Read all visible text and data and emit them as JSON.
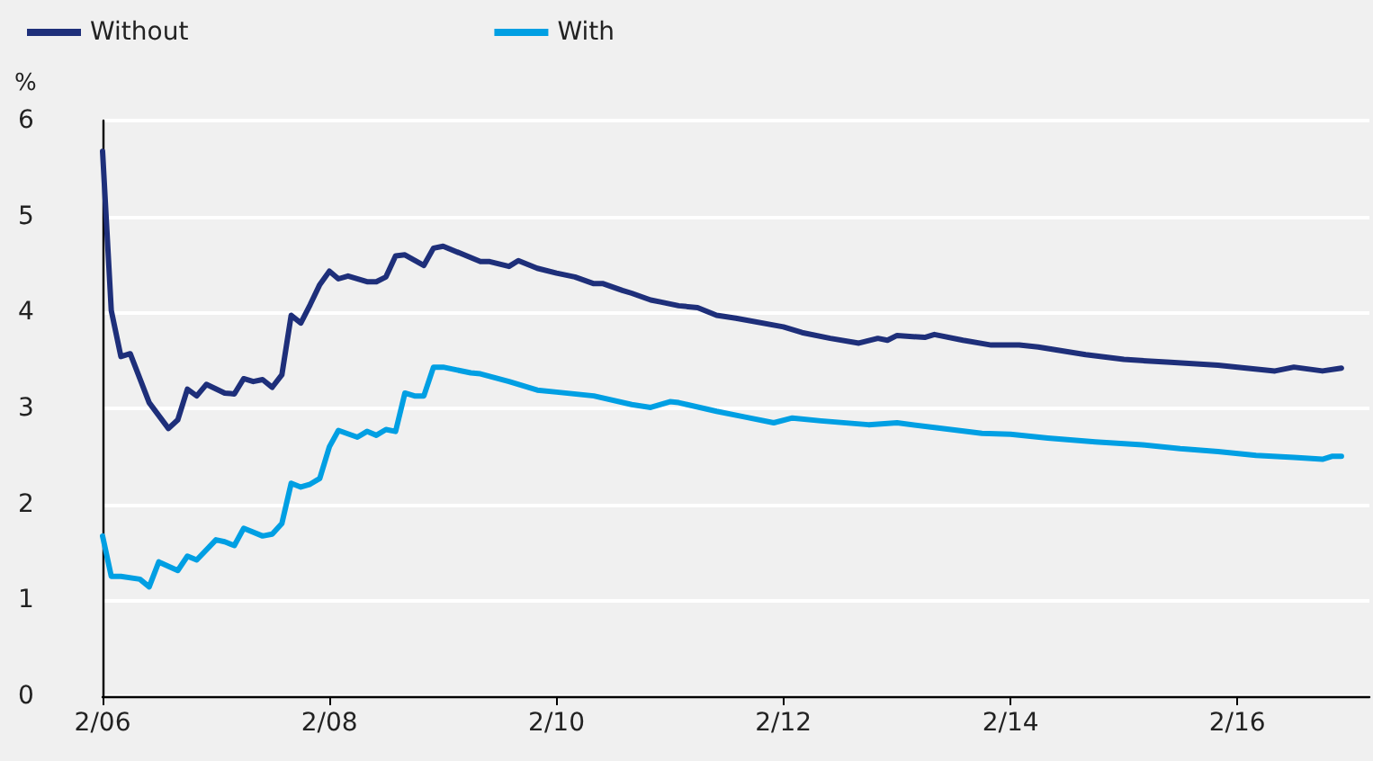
{
  "chart_data": {
    "type": "line",
    "ylabel": "%",
    "legend": "top left",
    "grid": "y",
    "marker": "none",
    "line_style": "solid",
    "xlim": [
      "2006-02",
      "2017-04"
    ],
    "ylim": [
      0,
      6
    ],
    "yticks": [
      0,
      1,
      2,
      3,
      4,
      5,
      6
    ],
    "xticks": [
      {
        "value": "2006-02",
        "label": "2/06"
      },
      {
        "value": "2008-02",
        "label": "2/08"
      },
      {
        "value": "2010-02",
        "label": "2/10"
      },
      {
        "value": "2012-02",
        "label": "2/12"
      },
      {
        "value": "2014-02",
        "label": "2/14"
      },
      {
        "value": "2016-02",
        "label": "2/16"
      }
    ],
    "series": [
      {
        "name": "Without",
        "color": "#1e2f7a",
        "x": [
          "2006-02",
          "2006-03",
          "2006-04",
          "2006-05",
          "2006-07",
          "2006-09",
          "2006-10",
          "2006-11",
          "2006-12",
          "2007-01",
          "2007-03",
          "2007-04",
          "2007-05",
          "2007-06",
          "2007-07",
          "2007-08",
          "2007-09",
          "2007-10",
          "2007-11",
          "2007-12",
          "2008-01",
          "2008-02",
          "2008-03",
          "2008-04",
          "2008-06",
          "2008-07",
          "2008-08",
          "2008-09",
          "2008-10",
          "2008-12",
          "2009-01",
          "2009-02",
          "2009-06",
          "2009-07",
          "2009-09",
          "2009-10",
          "2009-12",
          "2010-02",
          "2010-04",
          "2010-06",
          "2010-07",
          "2010-09",
          "2010-10",
          "2010-12",
          "2011-01",
          "2011-03",
          "2011-05",
          "2011-07",
          "2011-09",
          "2012-02",
          "2012-04",
          "2012-07",
          "2012-10",
          "2012-12",
          "2013-01",
          "2013-02",
          "2013-05",
          "2013-06",
          "2013-09",
          "2013-12",
          "2014-03",
          "2014-05",
          "2014-10",
          "2015-02",
          "2015-07",
          "2015-12",
          "2016-03",
          "2016-06",
          "2016-08",
          "2016-11",
          "2017-01"
        ],
        "values": [
          5.68,
          4.02,
          3.54,
          3.57,
          3.06,
          2.79,
          2.88,
          3.2,
          3.13,
          3.25,
          3.16,
          3.15,
          3.31,
          3.28,
          3.3,
          3.22,
          3.35,
          3.97,
          3.89,
          4.08,
          4.29,
          4.43,
          4.35,
          4.38,
          4.32,
          4.32,
          4.37,
          4.59,
          4.6,
          4.49,
          4.67,
          4.69,
          4.53,
          4.53,
          4.48,
          4.54,
          4.46,
          4.41,
          4.37,
          4.3,
          4.3,
          4.23,
          4.2,
          4.13,
          4.11,
          4.07,
          4.05,
          3.97,
          3.94,
          3.85,
          3.79,
          3.73,
          3.68,
          3.73,
          3.71,
          3.76,
          3.74,
          3.77,
          3.71,
          3.66,
          3.66,
          3.64,
          3.56,
          3.51,
          3.48,
          3.45,
          3.42,
          3.39,
          3.43,
          3.39,
          3.42
        ]
      },
      {
        "name": "With",
        "color": "#009fe3",
        "x": [
          "2006-02",
          "2006-03",
          "2006-04",
          "2006-06",
          "2006-07",
          "2006-08",
          "2006-10",
          "2006-11",
          "2006-12",
          "2007-02",
          "2007-03",
          "2007-04",
          "2007-05",
          "2007-07",
          "2007-08",
          "2007-09",
          "2007-10",
          "2007-11",
          "2007-12",
          "2008-01",
          "2008-02",
          "2008-03",
          "2008-05",
          "2008-06",
          "2008-07",
          "2008-08",
          "2008-09",
          "2008-10",
          "2008-11",
          "2008-12",
          "2009-01",
          "2009-02",
          "2009-05",
          "2009-06",
          "2009-09",
          "2009-12",
          "2010-02",
          "2010-06",
          "2010-10",
          "2010-12",
          "2011-02",
          "2011-03",
          "2011-07",
          "2011-10",
          "2012-01",
          "2012-03",
          "2012-06",
          "2012-11",
          "2013-02",
          "2013-06",
          "2013-11",
          "2014-02",
          "2014-06",
          "2014-11",
          "2015-04",
          "2015-08",
          "2015-12",
          "2016-04",
          "2016-08",
          "2016-11",
          "2016-12",
          "2017-01"
        ],
        "values": [
          1.67,
          1.25,
          1.25,
          1.22,
          1.14,
          1.4,
          1.31,
          1.46,
          1.42,
          1.63,
          1.61,
          1.57,
          1.75,
          1.67,
          1.69,
          1.8,
          2.22,
          2.18,
          2.21,
          2.27,
          2.6,
          2.77,
          2.7,
          2.76,
          2.72,
          2.78,
          2.76,
          3.16,
          3.13,
          3.13,
          3.43,
          3.43,
          3.37,
          3.36,
          3.28,
          3.19,
          3.17,
          3.13,
          3.04,
          3.01,
          3.07,
          3.06,
          2.97,
          2.91,
          2.85,
          2.9,
          2.87,
          2.83,
          2.85,
          2.8,
          2.74,
          2.73,
          2.69,
          2.65,
          2.62,
          2.58,
          2.55,
          2.51,
          2.49,
          2.47,
          2.5,
          2.5
        ]
      }
    ]
  }
}
